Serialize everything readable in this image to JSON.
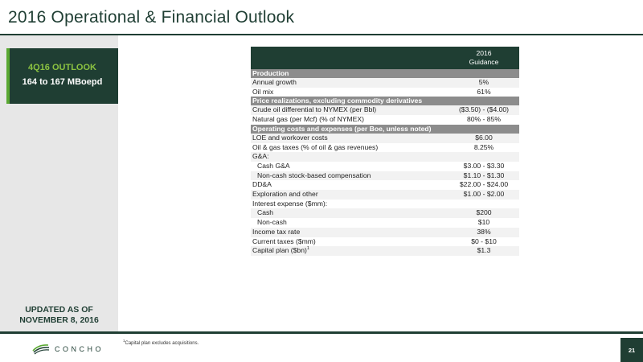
{
  "title": "2016 Operational & Financial Outlook",
  "outlook": {
    "title": "4Q16 OUTLOOK",
    "value": "164 to 167 MBoepd"
  },
  "updated": {
    "line1": "UPDATED AS OF",
    "line2": "NOVEMBER 8, 2016"
  },
  "table": {
    "header": {
      "line1": "2016",
      "line2": "Guidance"
    },
    "rows": [
      {
        "type": "section",
        "label": "Production"
      },
      {
        "type": "row",
        "label": "Annual growth",
        "value": "5%"
      },
      {
        "type": "row",
        "label": "Oil mix",
        "value": "61%"
      },
      {
        "type": "section",
        "label": "Price realizations, excluding commodity derivatives"
      },
      {
        "type": "row",
        "label": "Crude oil differential to NYMEX (per Bbl)",
        "value": "($3.50) - ($4.00)"
      },
      {
        "type": "row",
        "label": "Natural gas (per Mcf) (% of NYMEX)",
        "value": "80% - 85%"
      },
      {
        "type": "section",
        "label": "Operating costs and expenses (per Boe, unless noted)"
      },
      {
        "type": "row",
        "label": "LOE and workover costs",
        "value": "$6.00"
      },
      {
        "type": "row",
        "label": "Oil & gas taxes (% of oil & gas revenues)",
        "value": "8.25%"
      },
      {
        "type": "row",
        "label": "G&A:",
        "value": ""
      },
      {
        "type": "row",
        "indent": true,
        "label": "Cash G&A",
        "value": "$3.00 - $3.30"
      },
      {
        "type": "row",
        "indent": true,
        "label": "Non-cash stock-based compensation",
        "value": "$1.10 - $1.30"
      },
      {
        "type": "row",
        "label": "DD&A",
        "value": "$22.00 - $24.00"
      },
      {
        "type": "row",
        "label": "Exploration and other",
        "value": "$1.00 - $2.00"
      },
      {
        "type": "row",
        "label": "Interest expense ($mm):",
        "value": ""
      },
      {
        "type": "row",
        "indent": true,
        "label": "Cash",
        "value": "$200"
      },
      {
        "type": "row",
        "indent": true,
        "label": "Non-cash",
        "value": "$10"
      },
      {
        "type": "row",
        "label": "Income tax rate",
        "value": "38%"
      },
      {
        "type": "row",
        "label": "Current taxes ($mm)",
        "value": "$0 - $10"
      },
      {
        "type": "row",
        "label": "Capital plan ($bn)",
        "sup": "1",
        "value": "$1.3"
      }
    ]
  },
  "footnote": {
    "sup": "1",
    "text": "Capital plan excludes acquisitions."
  },
  "logo": {
    "text": "CONCHO"
  },
  "page_number": "21",
  "colors": {
    "dark_green": "#1f3e33",
    "accent_green": "#5aa832",
    "section_gray": "#8c8c8c",
    "panel_gray": "#e7e7e7"
  }
}
